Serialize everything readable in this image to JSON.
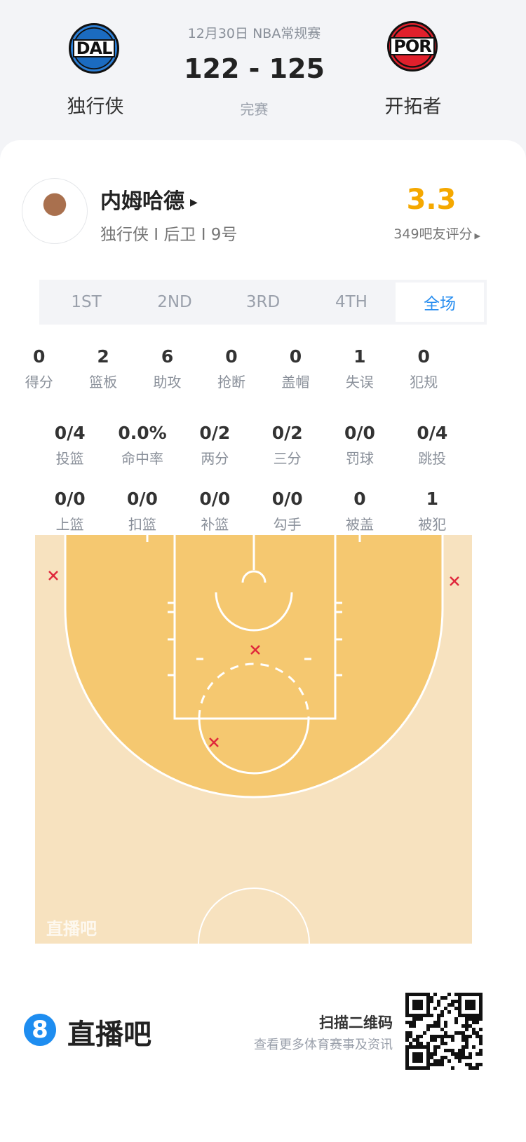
{
  "game": {
    "date_league": "12月30日 NBA常规赛",
    "score": "122 - 125",
    "status": "完赛",
    "home": {
      "abbr": "DAL",
      "name": "独行侠"
    },
    "away": {
      "abbr": "POR",
      "name": "开拓者"
    }
  },
  "player": {
    "name": "内姆哈德",
    "info": "独行侠 I 后卫 I 9号",
    "rating": "3.3",
    "rating_count": "349吧友评分"
  },
  "tabs": [
    {
      "label": "1ST"
    },
    {
      "label": "2ND"
    },
    {
      "label": "3RD"
    },
    {
      "label": "4TH"
    },
    {
      "label": "全场",
      "active": true
    }
  ],
  "stats_row1": [
    {
      "v": "0",
      "l": "得分"
    },
    {
      "v": "2",
      "l": "篮板"
    },
    {
      "v": "6",
      "l": "助攻"
    },
    {
      "v": "0",
      "l": "抢断"
    },
    {
      "v": "0",
      "l": "盖帽"
    },
    {
      "v": "1",
      "l": "失误"
    },
    {
      "v": "0",
      "l": "犯规"
    }
  ],
  "stats_row2": [
    {
      "v": "0/4",
      "l": "投篮"
    },
    {
      "v": "0.0%",
      "l": "命中率"
    },
    {
      "v": "0/2",
      "l": "两分"
    },
    {
      "v": "0/2",
      "l": "三分"
    },
    {
      "v": "0/0",
      "l": "罚球"
    },
    {
      "v": "0/4",
      "l": "跳投"
    }
  ],
  "stats_row3": [
    {
      "v": "0/0",
      "l": "上篮"
    },
    {
      "v": "0/0",
      "l": "扣篮"
    },
    {
      "v": "0/0",
      "l": "补篮"
    },
    {
      "v": "0/0",
      "l": "勾手"
    },
    {
      "v": "0",
      "l": "被盖"
    },
    {
      "v": "1",
      "l": "被犯"
    }
  ],
  "shot_chart": {
    "watermark": "直播吧",
    "shots": [
      {
        "result": "miss"
      },
      {
        "result": "miss"
      },
      {
        "result": "miss"
      },
      {
        "result": "miss"
      }
    ],
    "colors": {
      "paint": "#f5c870",
      "outer": "#f7e2bf",
      "miss": "#e0283c"
    }
  },
  "footer": {
    "brand": "直播吧",
    "brand_mark": "8",
    "scan": "扫描二维码",
    "scan_sub": "查看更多体育赛事及资讯"
  },
  "colors": {
    "accent": "#2a8ff0",
    "rating": "#f5a800"
  }
}
